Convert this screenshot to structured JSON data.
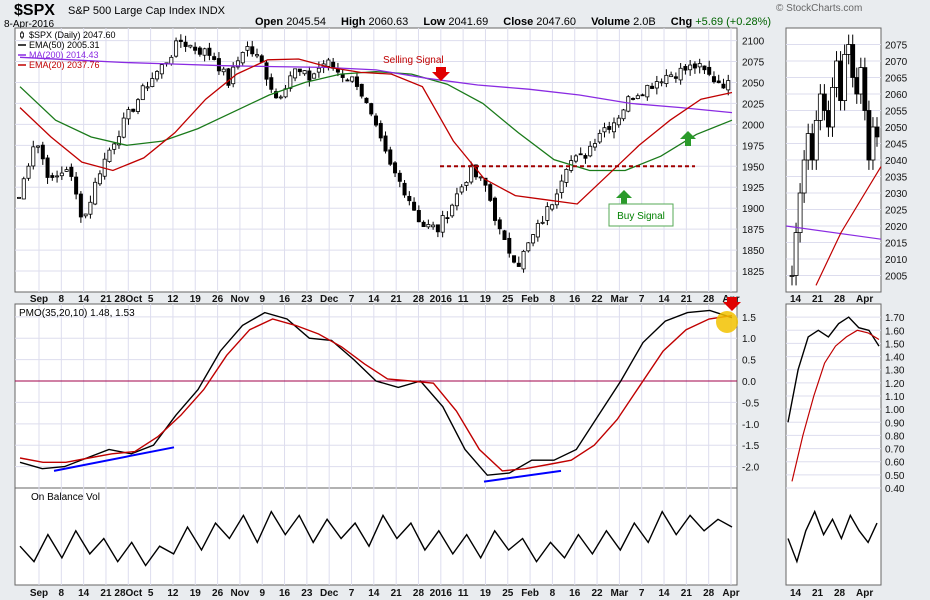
{
  "header": {
    "ticker": "$SPX",
    "name": "S&P 500 Large Cap Index",
    "exchange": "INDX",
    "date": "8-Apr-2016",
    "open_label": "Open",
    "open": "2045.54",
    "high_label": "High",
    "high": "2060.63",
    "low_label": "Low",
    "low": "2041.69",
    "close_label": "Close",
    "close": "2047.60",
    "volume_label": "Volume",
    "volume": "2.0B",
    "chg_label": "Chg",
    "chg": "+5.69 (+0.28%)",
    "credit": "© StockCharts.com"
  },
  "chart_data": [
    {
      "type": "candlestick",
      "title": "$SPX (Daily) 2047.60",
      "ylim": [
        1800,
        2115
      ],
      "yticks": [
        1825,
        1850,
        1875,
        1900,
        1925,
        1950,
        1975,
        2000,
        2025,
        2050,
        2075,
        2100
      ],
      "x_labels": [
        "Sep",
        "8",
        "14",
        "21",
        "28Oct",
        "5",
        "12",
        "19",
        "26",
        "Nov",
        "9",
        "16",
        "23",
        "Dec",
        "7",
        "14",
        "21",
        "28",
        "2016",
        "11",
        "19",
        "25",
        "Feb",
        "8",
        "16",
        "22",
        "Mar",
        "7",
        "14",
        "21",
        "28",
        "Apr"
      ],
      "legend_position": "top-left",
      "legend": [
        {
          "label": "$SPX (Daily) 2047.60",
          "color": "#000000"
        },
        {
          "label": "EMA(50) 2005.31",
          "color": "#000000"
        },
        {
          "label": "MA(200) 2014.43",
          "color": "#8a2be2"
        },
        {
          "label": "EMA(20) 2037.76",
          "color": "#c00000"
        }
      ],
      "price_anchors": [
        1913,
        1985,
        1930,
        1950,
        1885,
        1945,
        1985,
        2018,
        2050,
        2072,
        2100,
        2090,
        2083,
        2050,
        2095,
        2075,
        2030,
        2065,
        2055,
        2075,
        2060,
        2050,
        2000,
        1950,
        1920,
        1880,
        1875,
        1910,
        1945,
        1925,
        1860,
        1835,
        1870,
        1905,
        1955,
        1960,
        1992,
        2005,
        2035,
        2045,
        2058,
        2063,
        2070,
        2055,
        2047
      ],
      "series": [
        {
          "name": "EMA(50)",
          "color": "#1a7a1a",
          "values": [
            2045,
            2005,
            1985,
            1975,
            1980,
            1995,
            2015,
            2035,
            2050,
            2060,
            2063,
            2060,
            2048,
            2025,
            1990,
            1958,
            1945,
            1945,
            1962,
            1988,
            2005
          ]
        },
        {
          "name": "MA(200)",
          "color": "#8a2be2",
          "values": [
            2080,
            2077,
            2074,
            2072,
            2070,
            2069,
            2068,
            2065,
            2055,
            2047,
            2042,
            2035,
            2025,
            2020,
            2014
          ]
        },
        {
          "name": "EMA(20)",
          "color": "#c00000",
          "values": [
            2020,
            1985,
            1955,
            1945,
            1960,
            1990,
            2030,
            2060,
            2077,
            2078,
            2068,
            2062,
            2060,
            2045,
            1980,
            1935,
            1915,
            1910,
            1905,
            1940,
            1975,
            2005,
            2030,
            2038
          ]
        },
        {
          "name": "Resistance",
          "color": "#a00000",
          "values": [
            1950,
            1950
          ]
        }
      ],
      "annotations": [
        {
          "text": "Selling Signal",
          "color": "#c00000",
          "arrow": "down",
          "arrow_color": "red"
        },
        {
          "text": "Buy Signal",
          "color": "#008000",
          "arrow": "up",
          "arrow_color": "green"
        }
      ],
      "inset": {
        "ylim": [
          2000,
          2080
        ],
        "yticks": [
          2005,
          2010,
          2015,
          2020,
          2025,
          2030,
          2035,
          2040,
          2045,
          2050,
          2055,
          2060,
          2065,
          2070,
          2075
        ],
        "x_labels": [
          "14",
          "21",
          "28",
          "Apr"
        ]
      }
    },
    {
      "type": "line",
      "title": "PMO(35,20,10) 1.48, 1.53",
      "ylim": [
        -2.5,
        1.8
      ],
      "yticks": [
        -2.0,
        -1.5,
        -1.0,
        -0.5,
        0.0,
        0.5,
        1.0,
        1.5
      ],
      "series": [
        {
          "name": "PMO",
          "color": "#000000",
          "values": [
            -1.9,
            -2.05,
            -2.0,
            -1.8,
            -1.6,
            -1.7,
            -1.5,
            -0.8,
            -0.2,
            0.7,
            1.3,
            1.6,
            1.45,
            1.0,
            0.95,
            0.5,
            0.0,
            -0.15,
            0.0,
            -0.6,
            -1.6,
            -2.2,
            -2.15,
            -1.85,
            -1.85,
            -1.6,
            -0.8,
            0.0,
            0.9,
            1.4,
            1.6,
            1.65,
            1.48
          ]
        },
        {
          "name": "Signal",
          "color": "#c00000",
          "values": [
            -1.8,
            -1.9,
            -1.9,
            -1.8,
            -1.7,
            -1.65,
            -1.3,
            -0.8,
            -0.2,
            0.6,
            1.2,
            1.45,
            1.3,
            1.1,
            0.8,
            0.4,
            0.05,
            0.0,
            -0.05,
            -0.7,
            -1.6,
            -2.1,
            -2.05,
            -1.95,
            -1.85,
            -1.5,
            -0.9,
            -0.1,
            0.7,
            1.2,
            1.45,
            1.53
          ]
        },
        {
          "name": "Divergence 1",
          "color": "#0000ff",
          "values": [
            -2.1,
            -1.55
          ]
        },
        {
          "name": "Divergence 2",
          "color": "#0000ff",
          "values": [
            -2.35,
            -2.1
          ]
        }
      ],
      "inset": {
        "ylim": [
          0.4,
          1.8
        ],
        "yticks": [
          0.4,
          0.5,
          0.6,
          0.7,
          0.8,
          0.9,
          1.0,
          1.1,
          1.2,
          1.3,
          1.4,
          1.5,
          1.6,
          1.7
        ],
        "tick_labels": [
          "0.40",
          "0.50",
          "0.60",
          "0.70",
          "0.80",
          "0.90",
          "1.00",
          "1.10",
          "1.20",
          "1.30",
          "1.40",
          "1.50",
          "1.60",
          "1.70"
        ]
      }
    },
    {
      "type": "line",
      "title": "On Balance Vol",
      "series": [
        {
          "name": "On Balance Vol",
          "color": "#000000",
          "values": [
            0.4,
            0.2,
            0.55,
            0.25,
            0.6,
            0.3,
            0.5,
            0.2,
            0.45,
            0.15,
            0.4,
            0.3,
            0.65,
            0.35,
            0.7,
            0.5,
            0.8,
            0.45,
            0.85,
            0.55,
            0.8,
            0.45,
            0.75,
            0.5,
            0.7,
            0.4,
            0.8,
            0.5,
            0.7,
            0.35,
            0.6,
            0.3,
            0.55,
            0.25,
            0.6,
            0.35,
            0.5,
            0.2,
            0.45,
            0.25,
            0.55,
            0.3,
            0.6,
            0.35,
            0.7,
            0.45,
            0.85,
            0.55,
            0.8,
            0.6,
            0.75,
            0.65
          ]
        }
      ]
    }
  ]
}
